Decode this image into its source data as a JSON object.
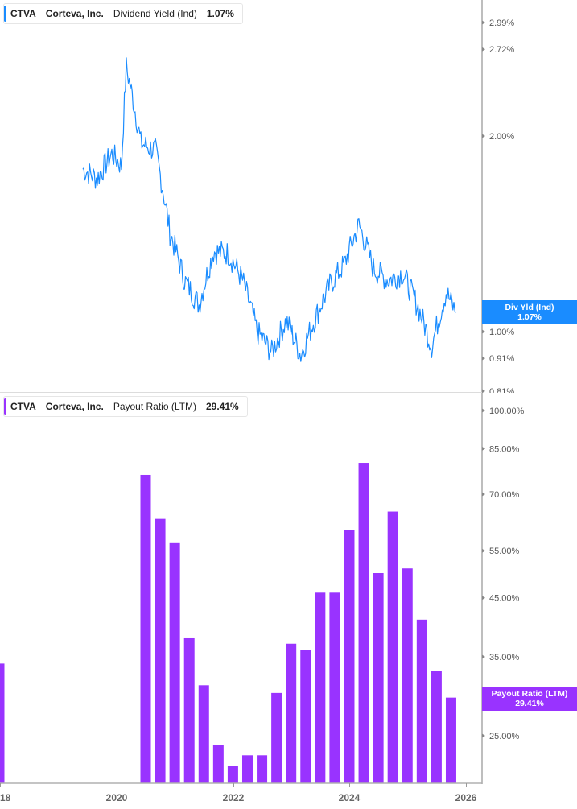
{
  "top_panel": {
    "legend": {
      "ticker": "CTVA",
      "company": "Corteva, Inc.",
      "metric": "Dividend Yield (Ind)",
      "value": "1.07%"
    },
    "badge": {
      "line1": "Div Yld (Ind)",
      "line2": "1.07%"
    },
    "accent_color": "#1a8cff"
  },
  "bottom_panel": {
    "legend": {
      "ticker": "CTVA",
      "company": "Corteva, Inc.",
      "metric": "Payout Ratio (LTM)",
      "value": "29.41%"
    },
    "badge": {
      "line1": "Payout Ratio (LTM)",
      "line2": "29.41%"
    },
    "accent_color": "#9933ff"
  },
  "x_axis": {
    "labels": [
      "18",
      "2020",
      "2022",
      "2024",
      "2026"
    ]
  },
  "chart_data": [
    {
      "type": "line",
      "title": "CTVA Corteva, Inc. Dividend Yield (Ind)",
      "series": [
        {
          "name": "Dividend Yield (Ind)",
          "color": "#1a8cff"
        }
      ],
      "y_scale": "log",
      "y_ticks": [
        "2.99%",
        "2.72%",
        "2.00%",
        "1.00%",
        "0.91%",
        "0.81%"
      ],
      "x_ticks": [
        "18",
        "2020",
        "2022",
        "2024",
        "2026"
      ],
      "x": [
        "2019-06",
        "2019-09",
        "2019-12",
        "2020-02",
        "2020-03",
        "2020-06",
        "2020-09",
        "2020-12",
        "2021-03",
        "2021-06",
        "2021-09",
        "2021-12",
        "2022-03",
        "2022-06",
        "2022-09",
        "2022-12",
        "2023-03",
        "2023-06",
        "2023-09",
        "2023-12",
        "2024-03",
        "2024-06",
        "2024-09",
        "2024-12",
        "2025-03",
        "2025-06",
        "2025-09",
        "2025-11"
      ],
      "values": [
        1.78,
        1.72,
        1.88,
        1.8,
        2.55,
        1.95,
        1.9,
        1.42,
        1.2,
        1.1,
        1.33,
        1.32,
        1.2,
        1.0,
        0.93,
        1.04,
        0.92,
        1.05,
        1.18,
        1.27,
        1.46,
        1.25,
        1.2,
        1.23,
        1.1,
        0.95,
        1.15,
        1.07
      ],
      "last_value": "1.07%",
      "grid": false
    },
    {
      "type": "bar",
      "title": "CTVA Corteva, Inc. Payout Ratio (LTM)",
      "series": [
        {
          "name": "Payout Ratio (LTM)",
          "color": "#9933ff"
        }
      ],
      "y_scale": "log",
      "y_ticks": [
        "100.00%",
        "85.00%",
        "70.00%",
        "55.00%",
        "45.00%",
        "35.00%",
        "25.00%"
      ],
      "x_ticks": [
        "18",
        "2020",
        "2022",
        "2024",
        "2026"
      ],
      "categories": [
        "2018-Q4",
        "2020-Q3",
        "2020-Q4",
        "2021-Q1",
        "2021-Q2",
        "2021-Q3",
        "2021-Q4",
        "2022-Q1",
        "2022-Q2",
        "2022-Q3",
        "2022-Q4",
        "2023-Q1",
        "2023-Q2",
        "2023-Q3",
        "2023-Q4",
        "2024-Q1",
        "2024-Q2",
        "2024-Q3",
        "2024-Q4",
        "2025-Q1",
        "2025-Q2",
        "2025-Q3",
        "2025-Q4"
      ],
      "values": [
        34,
        76,
        63,
        57,
        38,
        31,
        24,
        22,
        23,
        23,
        30,
        37,
        36,
        46,
        46,
        60,
        80,
        50,
        65,
        51,
        41,
        33,
        29.41
      ],
      "last_value": "29.41%",
      "grid": false
    }
  ]
}
